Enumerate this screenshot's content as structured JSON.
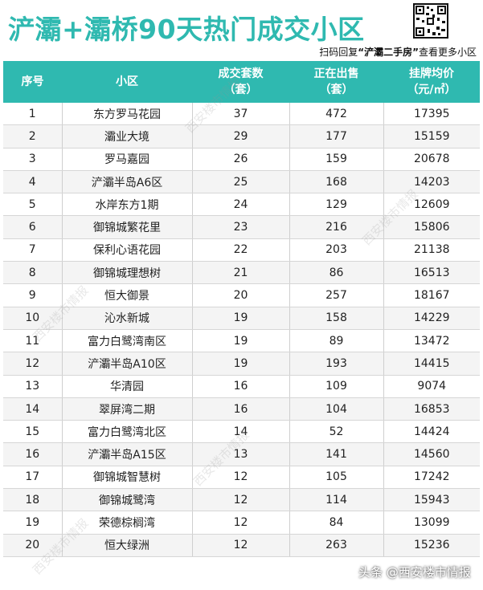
{
  "header": {
    "title": "浐灞+灞桥90天热门成交小区",
    "subtitle_prefix": "扫码回复",
    "subtitle_keyword": "“浐灞二手房”",
    "subtitle_suffix": "查看更多小区"
  },
  "table": {
    "headers": [
      {
        "line1": "序号",
        "line2": ""
      },
      {
        "line1": "小区",
        "line2": ""
      },
      {
        "line1": "成交套数",
        "line2": "（套）"
      },
      {
        "line1": "正在出售",
        "line2": "（套）"
      },
      {
        "line1": "挂牌均价",
        "line2": "（元/㎡）"
      }
    ],
    "rows": [
      [
        "1",
        "东方罗马花园",
        "37",
        "472",
        "17395"
      ],
      [
        "2",
        "灞业大境",
        "29",
        "177",
        "15159"
      ],
      [
        "3",
        "罗马嘉园",
        "26",
        "159",
        "20678"
      ],
      [
        "4",
        "浐灞半岛A6区",
        "25",
        "168",
        "14203"
      ],
      [
        "5",
        "水岸东方1期",
        "24",
        "129",
        "12609"
      ],
      [
        "6",
        "御锦城繁花里",
        "23",
        "216",
        "15806"
      ],
      [
        "7",
        "保利心语花园",
        "22",
        "203",
        "21138"
      ],
      [
        "8",
        "御锦城理想树",
        "21",
        "86",
        "16513"
      ],
      [
        "9",
        "恒大御景",
        "20",
        "257",
        "18167"
      ],
      [
        "10",
        "沁水新城",
        "19",
        "158",
        "14229"
      ],
      [
        "11",
        "富力白鹭湾南区",
        "19",
        "89",
        "13472"
      ],
      [
        "12",
        "浐灞半岛A10区",
        "19",
        "193",
        "14415"
      ],
      [
        "13",
        "华清园",
        "16",
        "109",
        "9074"
      ],
      [
        "14",
        "翠屏湾二期",
        "16",
        "104",
        "16853"
      ],
      [
        "15",
        "富力白鹭湾北区",
        "14",
        "52",
        "14424"
      ],
      [
        "16",
        "浐灞半岛A15区",
        "13",
        "141",
        "14560"
      ],
      [
        "17",
        "御锦城智慧树",
        "12",
        "105",
        "17242"
      ],
      [
        "18",
        "御锦城鹭湾",
        "12",
        "114",
        "15943"
      ],
      [
        "19",
        "荣德棕榈湾",
        "12",
        "84",
        "13099"
      ],
      [
        "20",
        "恒大绿洲",
        "12",
        "263",
        "15236"
      ]
    ]
  },
  "watermark": "西安楼市情报",
  "footer": "头条 @西安楼市情报",
  "colors": {
    "accent": "#2fb9b0"
  }
}
